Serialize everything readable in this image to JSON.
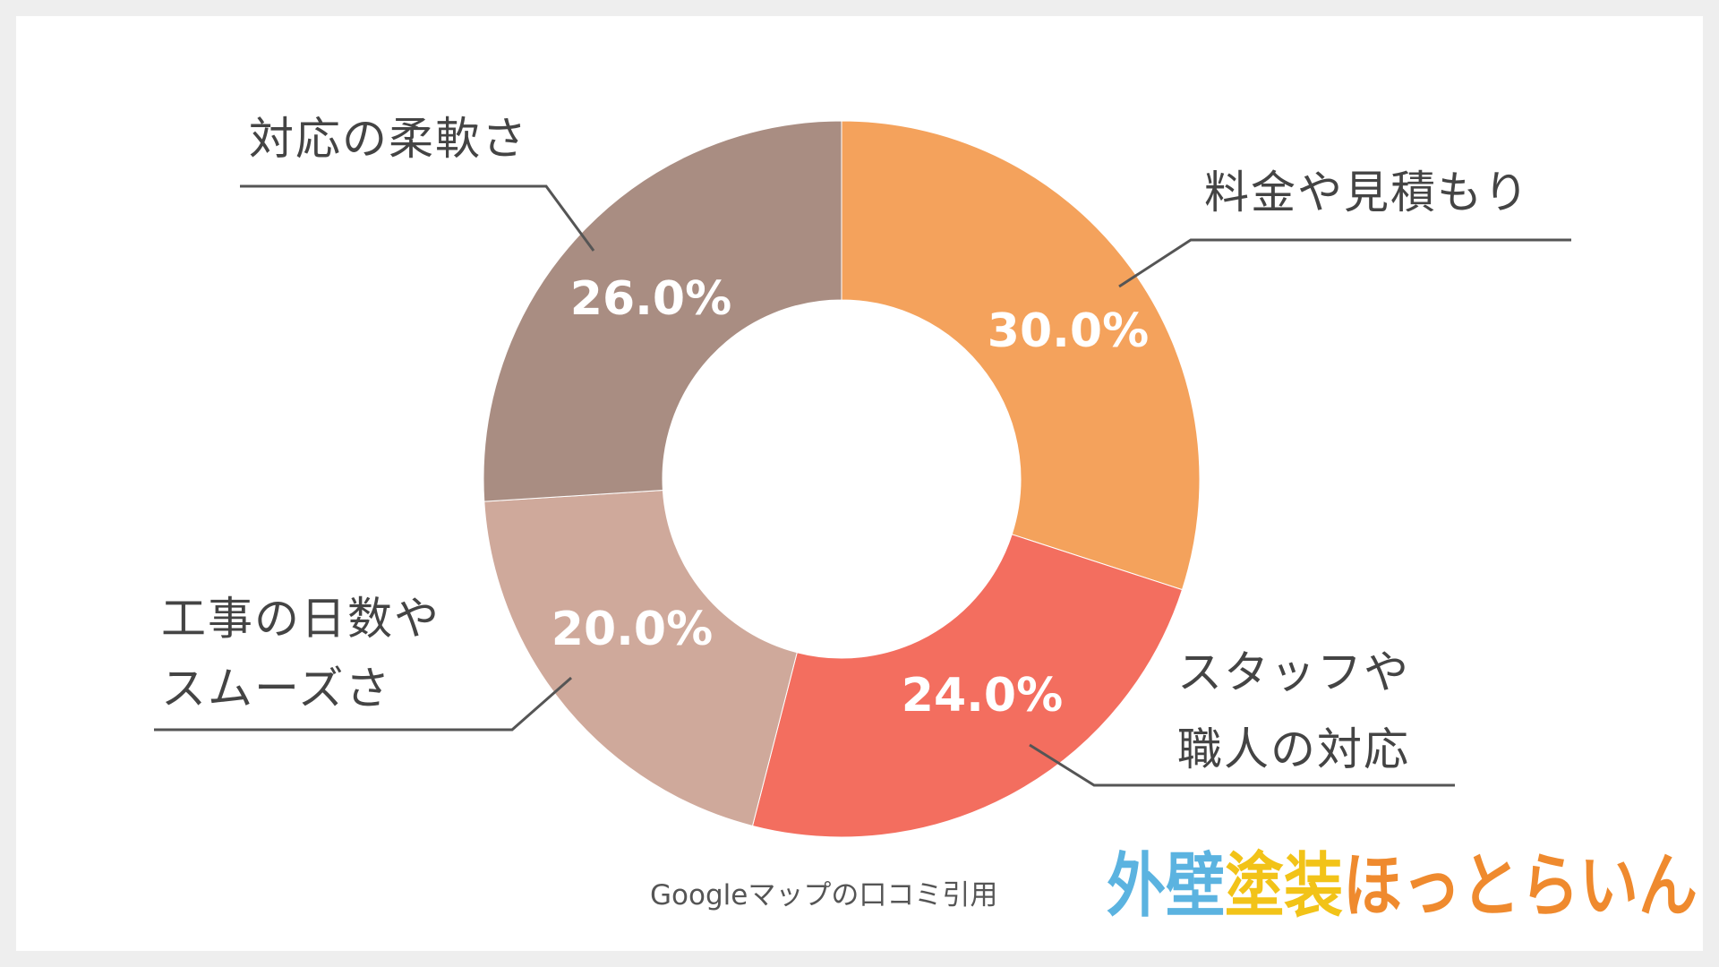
{
  "chart_data": {
    "type": "pie",
    "donut": true,
    "categories": [
      "料金や見積もり",
      "スタッフや職人の対応",
      "工事の日数やスムーズさ",
      "対応の柔軟さ"
    ],
    "label_lines": [
      [
        "料金や見積もり"
      ],
      [
        "スタッフや",
        "職人の対応"
      ],
      [
        "工事の日数や",
        "スムーズさ"
      ],
      [
        "対応の柔軟さ"
      ]
    ],
    "values": [
      30.0,
      24.0,
      20.0,
      26.0
    ],
    "value_labels": [
      "30.0%",
      "24.0%",
      "20.0%",
      "26.0%"
    ],
    "colors": [
      "#f4a25c",
      "#f36e5f",
      "#cfa99b",
      "#a98d82"
    ],
    "legend": "callout labels"
  },
  "source_note": "Googleマップの口コミ引用",
  "logo": {
    "text": "外壁塗装ほっとらいん",
    "parts": [
      {
        "text": "外壁",
        "color": "#5bb3e0"
      },
      {
        "text": "塗装",
        "color": "#f2c318"
      },
      {
        "text": "ほっとらいん",
        "color": "#ef8a2e"
      }
    ]
  },
  "colors": {
    "background": "#ffffff",
    "frame": "#eeeeee",
    "label_text": "#444444",
    "leader_line": "#555555"
  }
}
